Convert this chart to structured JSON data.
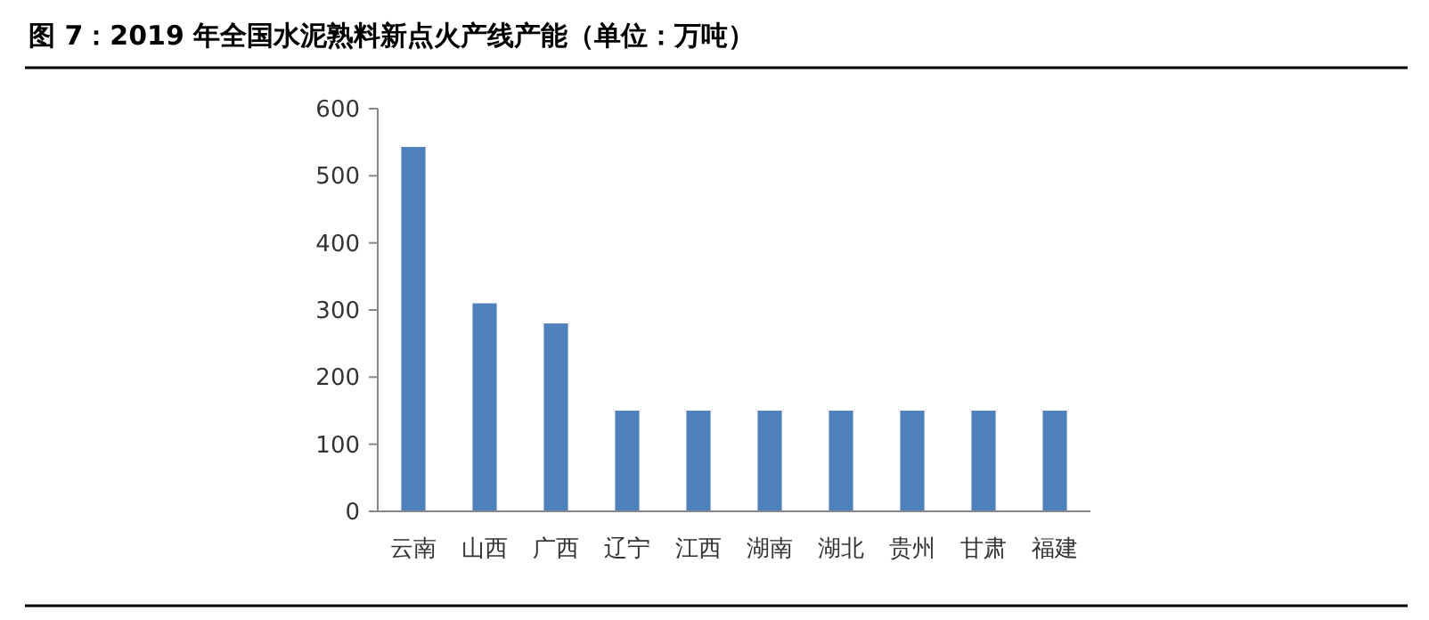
{
  "chart_data": {
    "type": "bar",
    "title": "图 7：2019 年全国水泥熟料新点火产线产能（单位：万吨）",
    "categories": [
      "云南",
      "山西",
      "广西",
      "辽宁",
      "江西",
      "湖南",
      "湖北",
      "贵州",
      "甘肃",
      "福建"
    ],
    "values": [
      543,
      310,
      280,
      150,
      150,
      150,
      150,
      150,
      150,
      150
    ],
    "color": "#4f81bd",
    "ylim": [
      0,
      600
    ],
    "yticks": [
      0,
      100,
      200,
      300,
      400,
      500,
      600
    ],
    "grid": false
  }
}
